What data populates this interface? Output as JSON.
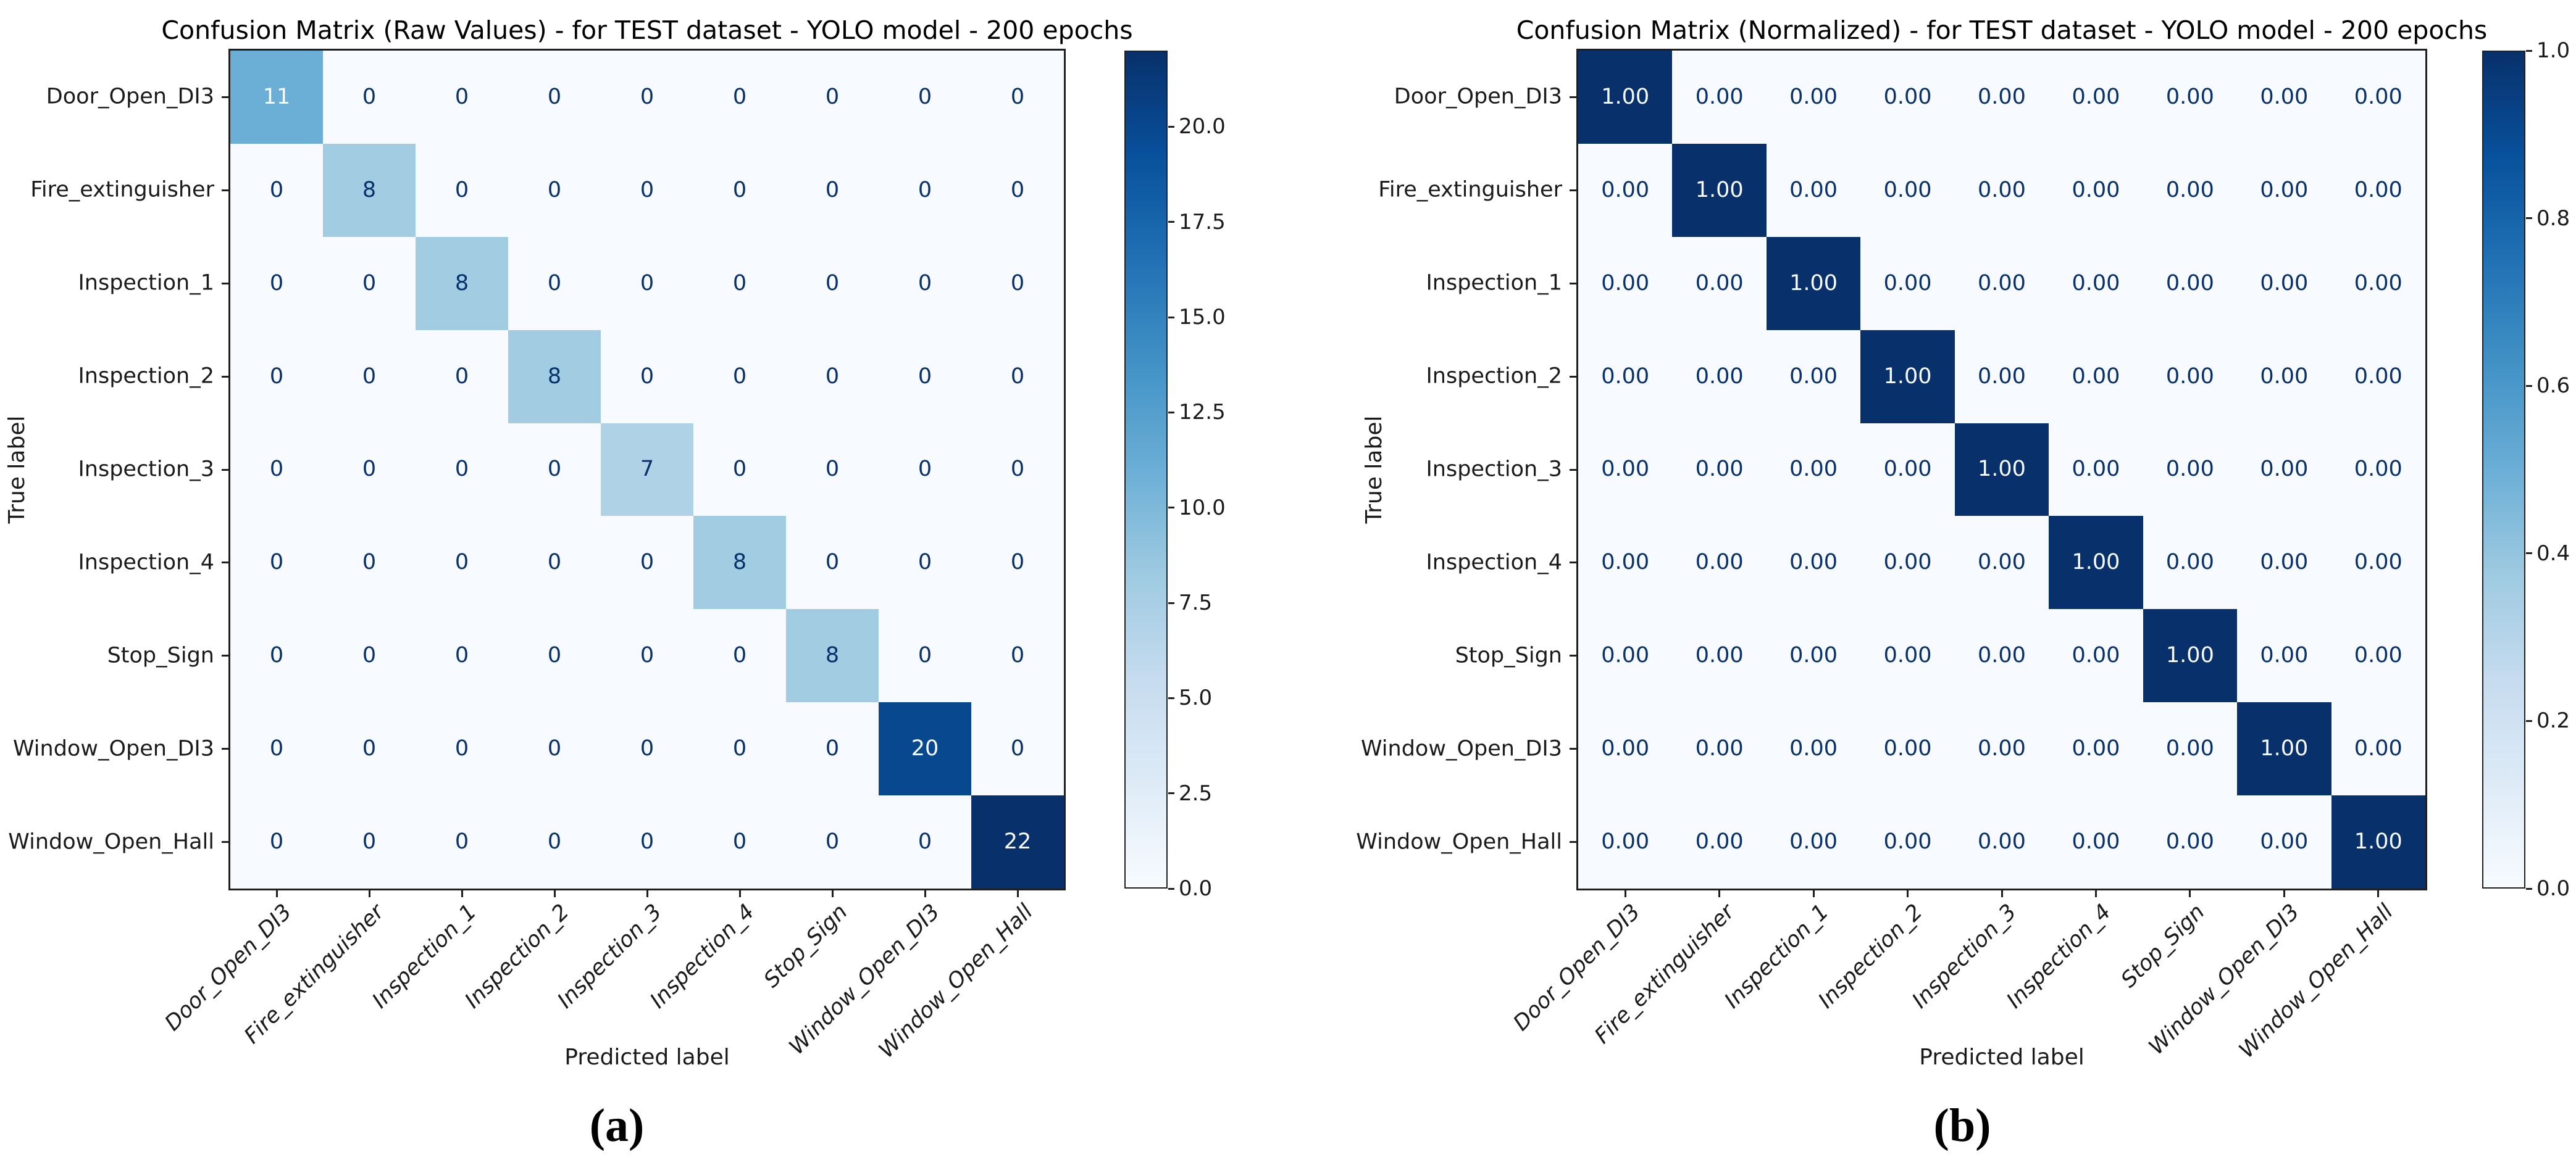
{
  "colors": {
    "background": "#ffffff",
    "spine": "#1f1f1f",
    "cell_text_dark": "#08306b",
    "cell_text_light": "#f7fbff",
    "blues_stops": [
      "#f7fbff",
      "#deebf7",
      "#c6dbef",
      "#9ecae1",
      "#6baed6",
      "#4292c6",
      "#2171b5",
      "#08519c",
      "#08306b"
    ]
  },
  "chart_data": [
    {
      "type": "heatmap",
      "title": "Confusion Matrix (Raw Values) - for TEST dataset - YOLO model - 200 epochs",
      "xlabel": "Predicted label",
      "ylabel": "True label",
      "panel_label": "(a)",
      "colormap": "Blues",
      "legend_position": "right-colorbar",
      "value_format": "int",
      "vmin": 0,
      "vmax": 22,
      "colorbar_ticks": [
        0,
        2.5,
        5,
        7.5,
        10,
        12.5,
        15,
        17.5,
        20
      ],
      "categories": [
        "Door_Open_DI3",
        "Fire_extinguisher",
        "Inspection_1",
        "Inspection_2",
        "Inspection_3",
        "Inspection_4",
        "Stop_Sign",
        "Window_Open_DI3",
        "Window_Open_Hall"
      ],
      "values": [
        [
          11,
          0,
          0,
          0,
          0,
          0,
          0,
          0,
          0
        ],
        [
          0,
          8,
          0,
          0,
          0,
          0,
          0,
          0,
          0
        ],
        [
          0,
          0,
          8,
          0,
          0,
          0,
          0,
          0,
          0
        ],
        [
          0,
          0,
          0,
          8,
          0,
          0,
          0,
          0,
          0
        ],
        [
          0,
          0,
          0,
          0,
          7,
          0,
          0,
          0,
          0
        ],
        [
          0,
          0,
          0,
          0,
          0,
          8,
          0,
          0,
          0
        ],
        [
          0,
          0,
          0,
          0,
          0,
          0,
          8,
          0,
          0
        ],
        [
          0,
          0,
          0,
          0,
          0,
          0,
          0,
          20,
          0
        ],
        [
          0,
          0,
          0,
          0,
          0,
          0,
          0,
          0,
          22
        ]
      ]
    },
    {
      "type": "heatmap",
      "title": "Confusion Matrix (Normalized) - for TEST dataset - YOLO model - 200 epochs",
      "xlabel": "Predicted label",
      "ylabel": "True label",
      "panel_label": "(b)",
      "colormap": "Blues",
      "legend_position": "right-colorbar",
      "value_format": "2dp",
      "vmin": 0,
      "vmax": 1,
      "colorbar_ticks": [
        0,
        0.2,
        0.4,
        0.6,
        0.8,
        1.0
      ],
      "categories": [
        "Door_Open_DI3",
        "Fire_extinguisher",
        "Inspection_1",
        "Inspection_2",
        "Inspection_3",
        "Inspection_4",
        "Stop_Sign",
        "Window_Open_DI3",
        "Window_Open_Hall"
      ],
      "values": [
        [
          1,
          0,
          0,
          0,
          0,
          0,
          0,
          0,
          0
        ],
        [
          0,
          1,
          0,
          0,
          0,
          0,
          0,
          0,
          0
        ],
        [
          0,
          0,
          1,
          0,
          0,
          0,
          0,
          0,
          0
        ],
        [
          0,
          0,
          0,
          1,
          0,
          0,
          0,
          0,
          0
        ],
        [
          0,
          0,
          0,
          0,
          1,
          0,
          0,
          0,
          0
        ],
        [
          0,
          0,
          0,
          0,
          0,
          1,
          0,
          0,
          0
        ],
        [
          0,
          0,
          0,
          0,
          0,
          0,
          1,
          0,
          0
        ],
        [
          0,
          0,
          0,
          0,
          0,
          0,
          0,
          1,
          0
        ],
        [
          0,
          0,
          0,
          0,
          0,
          0,
          0,
          0,
          1
        ]
      ]
    }
  ]
}
